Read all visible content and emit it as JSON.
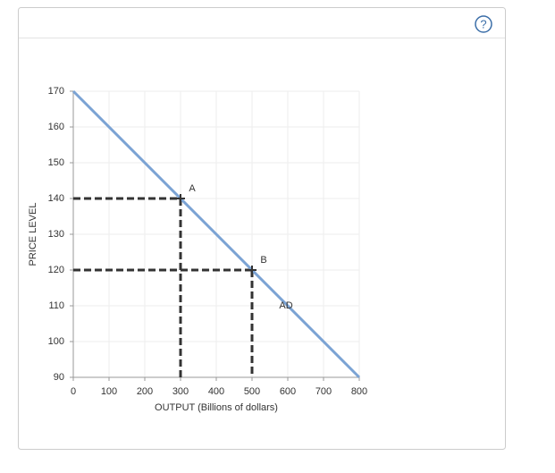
{
  "help_icon": "?",
  "chart_data": {
    "type": "line",
    "xlabel": "OUTPUT (Billions of dollars)",
    "ylabel": "PRICE LEVEL",
    "series": [
      {
        "name": "AD",
        "color": "#7ba3d4",
        "x": [
          0,
          800
        ],
        "values": [
          170,
          90
        ]
      }
    ],
    "points": [
      {
        "label": "A",
        "x": 300,
        "y": 140
      },
      {
        "label": "B",
        "x": 500,
        "y": 120
      }
    ],
    "xlim": [
      0,
      800
    ],
    "ylim": [
      90,
      170
    ],
    "xticks": [
      0,
      100,
      200,
      300,
      400,
      500,
      600,
      700,
      800
    ],
    "yticks": [
      90,
      100,
      110,
      120,
      130,
      140,
      150,
      160,
      170
    ],
    "grid": true
  }
}
